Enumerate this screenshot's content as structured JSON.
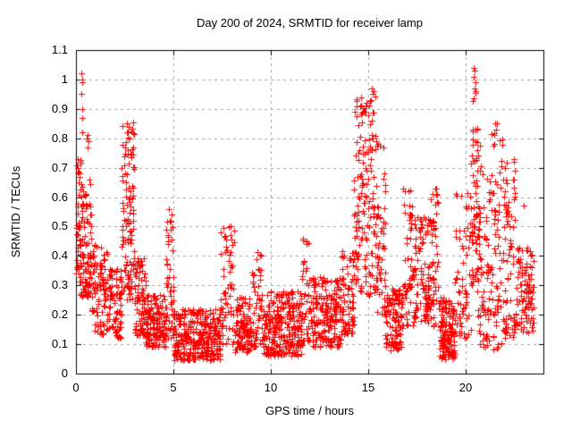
{
  "chart_data": {
    "type": "scatter",
    "title": "Day 200 of 2024, SRMTID for receiver lamp",
    "xlabel": "GPS time / hours",
    "ylabel": "SRMTID / TECUs",
    "xlim": [
      0,
      24
    ],
    "ylim": [
      0,
      1.1
    ],
    "grid": true,
    "legend": "none",
    "marker": "plus",
    "marker_color": "#ff0000",
    "grid_color": "#a0a0a0",
    "axis_color": "#000000",
    "xticks": [
      {
        "v": 0,
        "label": "0"
      },
      {
        "v": 5,
        "label": "5"
      },
      {
        "v": 10,
        "label": "10"
      },
      {
        "v": 15,
        "label": "15"
      },
      {
        "v": 20,
        "label": "20"
      }
    ],
    "yticks": [
      {
        "v": 0.0,
        "label": "0"
      },
      {
        "v": 0.1,
        "label": "0.1"
      },
      {
        "v": 0.2,
        "label": "0.2"
      },
      {
        "v": 0.3,
        "label": "0.3"
      },
      {
        "v": 0.4,
        "label": "0.4"
      },
      {
        "v": 0.5,
        "label": "0.5"
      },
      {
        "v": 0.6,
        "label": "0.6"
      },
      {
        "v": 0.7,
        "label": "0.7"
      },
      {
        "v": 0.8,
        "label": "0.8"
      },
      {
        "v": 0.9,
        "label": "0.9"
      },
      {
        "v": 1.0,
        "label": "1"
      },
      {
        "v": 1.1,
        "label": "1.1"
      }
    ],
    "seed": 20241200,
    "bands": [
      {
        "t0": 0.0,
        "t1": 0.25,
        "y0": 0.3,
        "y1": 0.75,
        "n": 45,
        "bias": 1.1
      },
      {
        "t0": 0.25,
        "t1": 0.8,
        "y0": 0.26,
        "y1": 0.66,
        "n": 90,
        "bias": 1.25
      },
      {
        "t0": 0.8,
        "t1": 1.6,
        "y0": 0.13,
        "y1": 0.44,
        "n": 90,
        "bias": 1.3
      },
      {
        "t0": 1.6,
        "t1": 2.35,
        "y0": 0.12,
        "y1": 0.36,
        "n": 85,
        "bias": 1.3
      },
      {
        "t0": 2.35,
        "t1": 3.0,
        "y0": 0.25,
        "y1": 0.86,
        "n": 110,
        "bias": 1.15
      },
      {
        "t0": 3.0,
        "t1": 3.6,
        "y0": 0.13,
        "y1": 0.4,
        "n": 85,
        "bias": 1.4
      },
      {
        "t0": 3.6,
        "t1": 4.6,
        "y0": 0.09,
        "y1": 0.27,
        "n": 140,
        "bias": 1.3
      },
      {
        "t0": 4.6,
        "t1": 5.0,
        "y0": 0.12,
        "y1": 0.56,
        "n": 50,
        "bias": 1.35
      },
      {
        "t0": 5.0,
        "t1": 7.4,
        "y0": 0.045,
        "y1": 0.22,
        "n": 310,
        "bias": 1.25
      },
      {
        "t0": 7.4,
        "t1": 8.15,
        "y0": 0.1,
        "y1": 0.5,
        "n": 60,
        "bias": 1.5
      },
      {
        "t0": 8.15,
        "t1": 9.0,
        "y0": 0.07,
        "y1": 0.26,
        "n": 110,
        "bias": 1.25
      },
      {
        "t0": 9.0,
        "t1": 9.5,
        "y0": 0.09,
        "y1": 0.42,
        "n": 45,
        "bias": 1.5
      },
      {
        "t0": 9.5,
        "t1": 11.6,
        "y0": 0.06,
        "y1": 0.28,
        "n": 270,
        "bias": 1.25
      },
      {
        "t0": 11.6,
        "t1": 12.05,
        "y0": 0.11,
        "y1": 0.46,
        "n": 40,
        "bias": 1.5
      },
      {
        "t0": 12.05,
        "t1": 13.6,
        "y0": 0.09,
        "y1": 0.33,
        "n": 185,
        "bias": 1.25
      },
      {
        "t0": 13.6,
        "t1": 14.25,
        "y0": 0.13,
        "y1": 0.42,
        "n": 75,
        "bias": 1.3
      },
      {
        "t0": 14.25,
        "t1": 14.8,
        "y0": 0.28,
        "y1": 0.94,
        "n": 75,
        "bias": 1.2
      },
      {
        "t0": 14.8,
        "t1": 15.45,
        "y0": 0.26,
        "y1": 0.97,
        "n": 85,
        "bias": 1.25
      },
      {
        "t0": 15.45,
        "t1": 15.9,
        "y0": 0.2,
        "y1": 0.8,
        "n": 50,
        "bias": 1.4
      },
      {
        "t0": 15.9,
        "t1": 16.8,
        "y0": 0.08,
        "y1": 0.3,
        "n": 115,
        "bias": 1.2
      },
      {
        "t0": 16.8,
        "t1": 17.3,
        "y0": 0.16,
        "y1": 0.63,
        "n": 50,
        "bias": 1.3
      },
      {
        "t0": 17.3,
        "t1": 18.1,
        "y0": 0.17,
        "y1": 0.55,
        "n": 95,
        "bias": 1.2
      },
      {
        "t0": 18.1,
        "t1": 18.65,
        "y0": 0.16,
        "y1": 0.65,
        "n": 60,
        "bias": 1.3
      },
      {
        "t0": 18.65,
        "t1": 19.45,
        "y0": 0.05,
        "y1": 0.26,
        "n": 135,
        "bias": 1.2
      },
      {
        "t0": 19.45,
        "t1": 20.3,
        "y0": 0.12,
        "y1": 0.64,
        "n": 65,
        "bias": 1.4
      },
      {
        "t0": 20.3,
        "t1": 20.62,
        "y0": 0.3,
        "y1": 1.0,
        "n": 60,
        "bias": 1.3
      },
      {
        "t0": 20.62,
        "t1": 21.3,
        "y0": 0.09,
        "y1": 0.78,
        "n": 80,
        "bias": 1.3
      },
      {
        "t0": 21.3,
        "t1": 21.9,
        "y0": 0.08,
        "y1": 0.85,
        "n": 65,
        "bias": 1.35
      },
      {
        "t0": 21.9,
        "t1": 22.6,
        "y0": 0.12,
        "y1": 0.73,
        "n": 75,
        "bias": 1.45
      },
      {
        "t0": 22.6,
        "t1": 23.5,
        "y0": 0.14,
        "y1": 0.43,
        "n": 95,
        "bias": 1.2
      }
    ],
    "outliers": [
      [
        0.28,
        1.02
      ],
      [
        0.33,
        1.0
      ],
      [
        0.3,
        0.99
      ],
      [
        0.29,
        0.95
      ],
      [
        0.34,
        0.9
      ],
      [
        0.3,
        0.87
      ],
      [
        0.32,
        0.82
      ],
      [
        0.55,
        0.8
      ],
      [
        0.6,
        0.81
      ],
      [
        0.63,
        0.79
      ],
      [
        0.58,
        0.77
      ],
      [
        0.07,
        0.73
      ],
      [
        0.1,
        0.7
      ],
      [
        2.62,
        0.85
      ],
      [
        2.7,
        0.84
      ],
      [
        2.66,
        0.82
      ],
      [
        2.74,
        0.8
      ],
      [
        4.78,
        0.56
      ],
      [
        4.8,
        0.52
      ],
      [
        7.95,
        0.5
      ],
      [
        7.92,
        0.47
      ],
      [
        11.85,
        0.45
      ],
      [
        14.62,
        0.94
      ],
      [
        14.58,
        0.91
      ],
      [
        14.65,
        0.88
      ],
      [
        15.18,
        0.97
      ],
      [
        15.22,
        0.95
      ],
      [
        15.15,
        0.93
      ],
      [
        18.45,
        0.63
      ],
      [
        18.5,
        0.61
      ],
      [
        20.44,
        1.04
      ],
      [
        20.47,
        1.03
      ],
      [
        20.42,
        1.01
      ],
      [
        20.49,
        0.99
      ],
      [
        20.46,
        0.97
      ],
      [
        21.52,
        0.85
      ],
      [
        21.58,
        0.83
      ],
      [
        21.48,
        0.81
      ],
      [
        22.5,
        0.73
      ],
      [
        22.55,
        0.69
      ],
      [
        22.48,
        0.66
      ],
      [
        23.0,
        0.57
      ]
    ]
  }
}
